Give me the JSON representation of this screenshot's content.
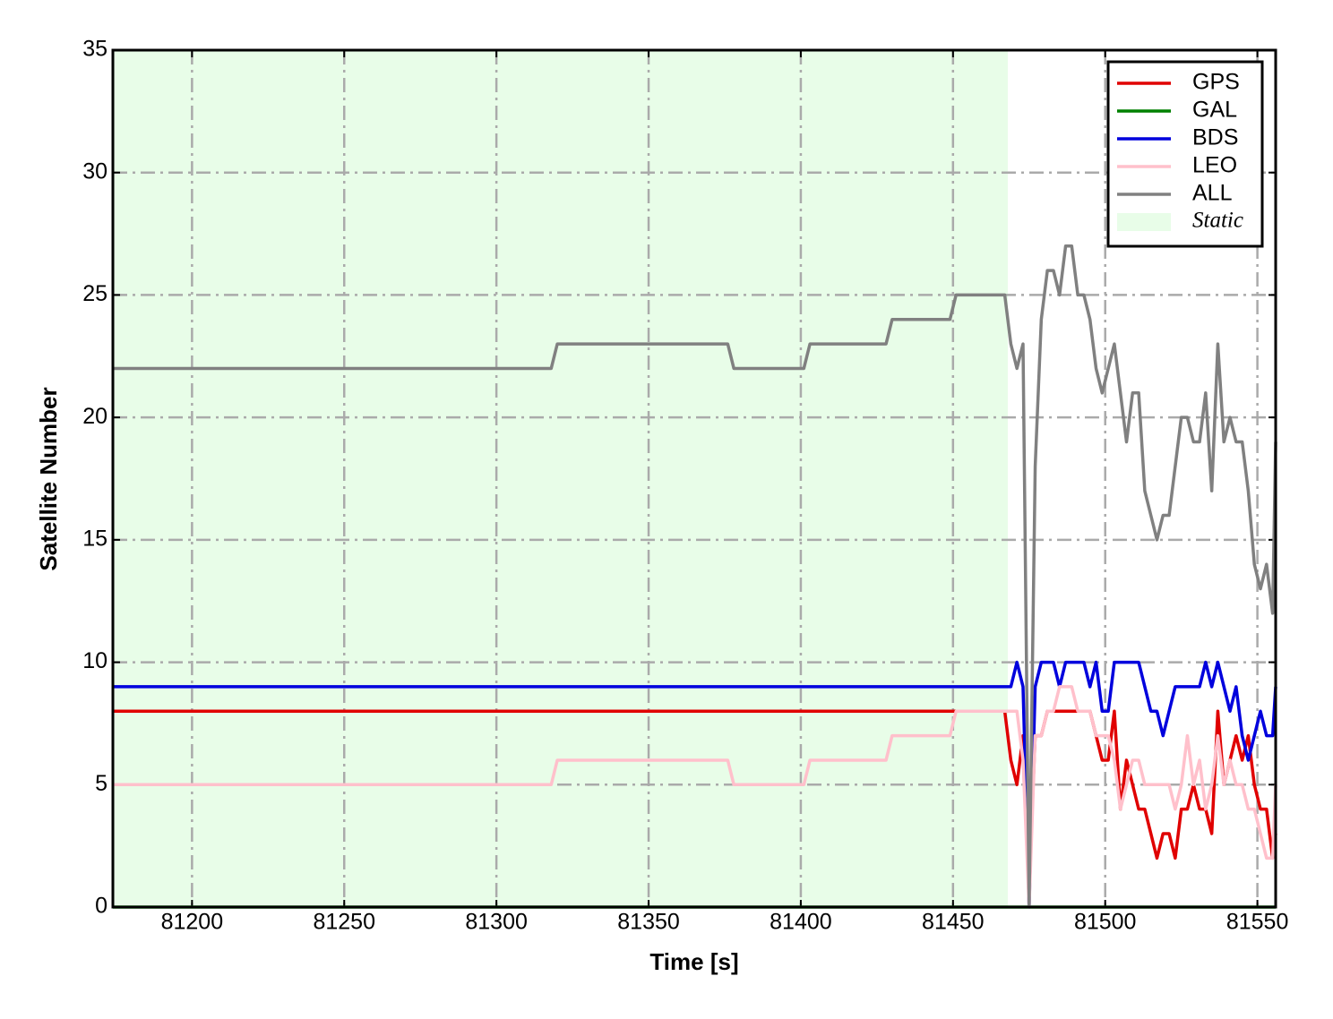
{
  "chart_data": {
    "type": "line",
    "x_label": "Time [s]",
    "y_label": "Satellite Number",
    "x": [
      81174,
      81318,
      81320,
      81376,
      81378,
      81401,
      81403,
      81428,
      81430,
      81449,
      81451,
      81467,
      81469,
      81471,
      81473,
      81475,
      81477,
      81479,
      81481,
      81483,
      81485,
      81487,
      81489,
      81491,
      81493,
      81495,
      81497,
      81499,
      81501,
      81503,
      81505,
      81507,
      81509,
      81511,
      81513,
      81515,
      81517,
      81519,
      81521,
      81523,
      81525,
      81527,
      81529,
      81531,
      81533,
      81535,
      81537,
      81539,
      81541,
      81543,
      81545,
      81547,
      81549,
      81551,
      81553,
      81555,
      81556
    ],
    "series": [
      {
        "name": "GPS",
        "color": "#e00000",
        "values": [
          8,
          8,
          8,
          8,
          8,
          8,
          8,
          8,
          8,
          8,
          8,
          8,
          6,
          5,
          7,
          1,
          7,
          7,
          8,
          8,
          8,
          8,
          8,
          8,
          8,
          8,
          7,
          6,
          6,
          8,
          4,
          6,
          5,
          4,
          4,
          3,
          2,
          3,
          3,
          2,
          4,
          4,
          5,
          4,
          4,
          3,
          8,
          5,
          6,
          7,
          6,
          7,
          5,
          4,
          4,
          2,
          3
        ]
      },
      {
        "name": "GAL",
        "color": "#008000",
        "values": [
          0,
          0,
          0,
          0,
          0,
          0,
          0,
          0,
          0,
          0,
          0,
          0,
          0,
          0,
          0,
          0,
          0,
          0,
          0,
          0,
          0,
          0,
          0,
          0,
          0,
          0,
          0,
          0,
          0,
          0,
          0,
          0,
          0,
          0,
          0,
          0,
          0,
          0,
          0,
          0,
          0,
          0,
          0,
          0,
          0,
          0,
          0,
          0,
          0,
          0,
          0,
          0,
          0,
          0,
          0,
          0,
          0
        ]
      },
      {
        "name": "BDS",
        "color": "#0000dd",
        "values": [
          9,
          9,
          9,
          9,
          9,
          9,
          9,
          9,
          9,
          9,
          9,
          9,
          9,
          10,
          9,
          0,
          9,
          10,
          10,
          10,
          9,
          10,
          10,
          10,
          10,
          9,
          10,
          8,
          8,
          10,
          10,
          10,
          10,
          10,
          9,
          8,
          8,
          7,
          8,
          9,
          9,
          9,
          9,
          9,
          10,
          9,
          10,
          9,
          8,
          9,
          7,
          6,
          7,
          8,
          7,
          7,
          9
        ]
      },
      {
        "name": "LEO",
        "color": "#ffc0cb",
        "values": [
          5,
          5,
          6,
          6,
          5,
          5,
          6,
          6,
          7,
          7,
          8,
          8,
          8,
          8,
          6,
          0,
          7,
          7,
          8,
          8,
          9,
          9,
          9,
          8,
          8,
          8,
          7,
          7,
          7,
          6,
          4,
          5,
          6,
          6,
          5,
          5,
          5,
          5,
          5,
          4,
          5,
          7,
          5,
          6,
          4,
          5,
          7,
          5,
          6,
          5,
          5,
          4,
          4,
          3,
          2,
          2,
          5
        ]
      },
      {
        "name": "ALL",
        "color": "#808080",
        "values": [
          22,
          22,
          23,
          23,
          22,
          22,
          23,
          23,
          24,
          24,
          25,
          25,
          23,
          22,
          23,
          0,
          18,
          24,
          26,
          26,
          25,
          27,
          27,
          25,
          25,
          24,
          22,
          21,
          22,
          23,
          21,
          19,
          21,
          21,
          17,
          16,
          15,
          16,
          16,
          18,
          20,
          20,
          19,
          19,
          21,
          17,
          23,
          19,
          20,
          19,
          19,
          17,
          14,
          13,
          14,
          12,
          19
        ]
      }
    ],
    "shade": {
      "label": "Static",
      "x": [
        81174,
        81468
      ],
      "color": "#e8fde8"
    },
    "xlim": [
      81174,
      81556
    ],
    "xticks": [
      81200,
      81250,
      81300,
      81350,
      81400,
      81450,
      81500,
      81550
    ],
    "ylim": [
      0,
      35
    ],
    "yticks": [
      0,
      5,
      10,
      15,
      20,
      25,
      30,
      35
    ],
    "grid": true,
    "legend": "upper right"
  }
}
